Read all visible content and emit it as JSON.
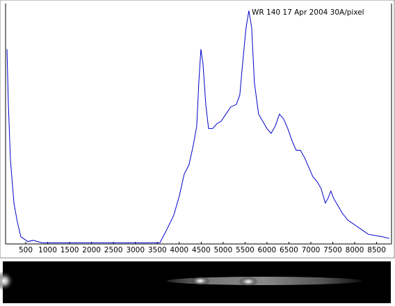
{
  "chart_data": {
    "type": "line",
    "title": "WR 140  17 Apr 2004  30A/pixel",
    "x": [
      72,
      104,
      151,
      231,
      310,
      389,
      548,
      674,
      865,
      1498,
      2291,
      3083,
      3559,
      3717,
      3876,
      4002,
      4113,
      4224,
      4319,
      4399,
      4446,
      4494,
      4541,
      4605,
      4668,
      4763,
      4858,
      4953,
      5064,
      5175,
      5302,
      5381,
      5460,
      5524,
      5587,
      5651,
      5714,
      5809,
      5904,
      5999,
      6094,
      6189,
      6284,
      6379,
      6475,
      6570,
      6665,
      6760,
      6855,
      6950,
      7045,
      7140,
      7235,
      7330,
      7393,
      7457,
      7520,
      7615,
      7711,
      7837,
      7996,
      8155,
      8313,
      8472,
      8630,
      8789
    ],
    "series": [
      {
        "color": "#0000cc",
        "values": [
          81,
          58,
          35,
          17,
          9,
          3,
          1,
          1.5,
          0.5,
          0.5,
          0.5,
          0.5,
          0.5,
          6,
          12,
          20,
          29,
          33,
          41,
          49,
          67,
          81,
          75,
          58,
          48,
          48,
          50,
          51,
          54,
          57,
          58,
          62,
          78,
          90,
          97,
          90,
          67,
          54,
          51,
          48,
          46,
          49,
          54,
          52,
          48,
          43,
          39,
          39,
          36,
          32,
          28,
          26,
          23,
          17,
          19,
          22,
          19,
          16,
          13,
          10,
          8,
          6,
          4,
          3.5,
          3,
          2.3
        ]
      }
    ],
    "xlim": [
      40,
      8840
    ],
    "xticks": [
      500,
      1000,
      1500,
      2000,
      2500,
      3000,
      3500,
      4000,
      4500,
      5000,
      5500,
      6000,
      6500,
      7000,
      7500,
      8000,
      8500
    ],
    "ylim": [
      0,
      100
    ]
  }
}
